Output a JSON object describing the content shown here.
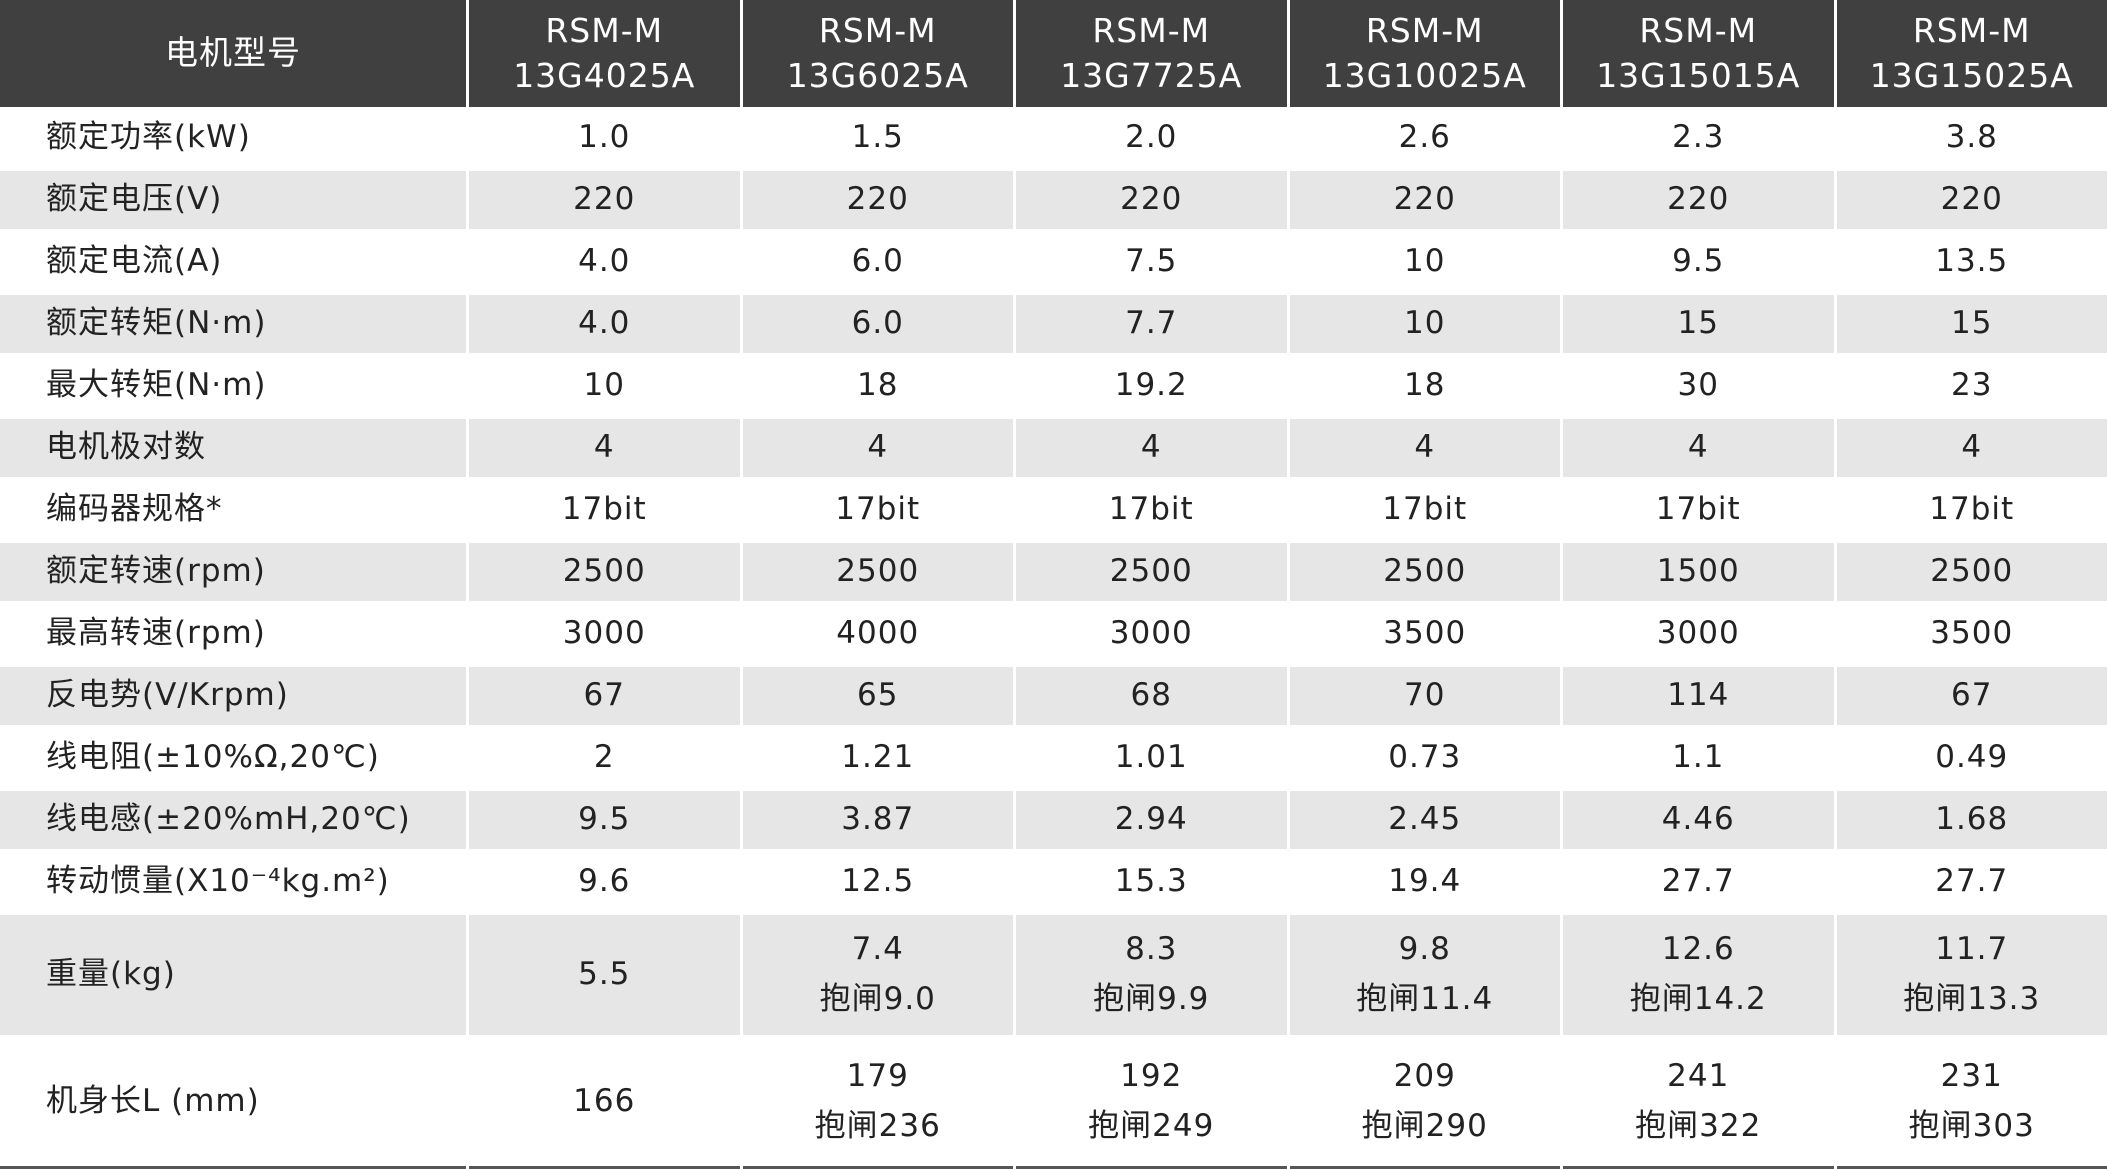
{
  "table": {
    "header": [
      "电机型号",
      [
        "RSM-M",
        "13G4025A"
      ],
      [
        "RSM-M",
        "13G6025A"
      ],
      [
        "RSM-M",
        "13G7725A"
      ],
      [
        "RSM-M",
        "13G10025A"
      ],
      [
        "RSM-M",
        "13G15015A"
      ],
      [
        "RSM-M",
        "13G15025A"
      ]
    ],
    "rows": [
      [
        "额定功率(kW)",
        "1.0",
        "1.5",
        "2.0",
        "2.6",
        "2.3",
        "3.8"
      ],
      [
        "额定电压(V)",
        "220",
        "220",
        "220",
        "220",
        "220",
        "220"
      ],
      [
        "额定电流(A)",
        "4.0",
        "6.0",
        "7.5",
        "10",
        "9.5",
        "13.5"
      ],
      [
        "额定转矩(N·m)",
        "4.0",
        "6.0",
        "7.7",
        "10",
        "15",
        "15"
      ],
      [
        "最大转矩(N·m)",
        "10",
        "18",
        "19.2",
        "18",
        "30",
        "23"
      ],
      [
        "电机极对数",
        "4",
        "4",
        "4",
        "4",
        "4",
        "4"
      ],
      [
        "编码器规格*",
        "17bit",
        "17bit",
        "17bit",
        "17bit",
        "17bit",
        "17bit"
      ],
      [
        "额定转速(rpm)",
        "2500",
        "2500",
        "2500",
        "2500",
        "1500",
        "2500"
      ],
      [
        "最高转速(rpm)",
        "3000",
        "4000",
        "3000",
        "3500",
        "3000",
        "3500"
      ],
      [
        "反电势(V/Krpm)",
        "67",
        "65",
        "68",
        "70",
        "114",
        "67"
      ],
      [
        "线电阻(±10%Ω,20℃)",
        "2",
        "1.21",
        "1.01",
        "0.73",
        "1.1",
        "0.49"
      ],
      [
        "线电感(±20%mH,20℃)",
        "9.5",
        "3.87",
        "2.94",
        "2.45",
        "4.46",
        "1.68"
      ],
      [
        "转动惯量(X10⁻⁴kg.m²)",
        "9.6",
        "12.5",
        "15.3",
        "19.4",
        "27.7",
        "27.7"
      ],
      [
        "重量(kg)",
        "5.5",
        [
          "7.4",
          "抱闸9.0"
        ],
        [
          "8.3",
          "抱闸9.9"
        ],
        [
          "9.8",
          "抱闸11.4"
        ],
        [
          "12.6",
          "抱闸14.2"
        ],
        [
          "11.7",
          "抱闸13.3"
        ]
      ],
      [
        "机身长L (mm)",
        "166",
        [
          "179",
          "抱闸236"
        ],
        [
          "192",
          "抱闸249"
        ],
        [
          "209",
          "抱闸290"
        ],
        [
          "241",
          "抱闸322"
        ],
        [
          "231",
          "抱闸303"
        ]
      ]
    ]
  }
}
